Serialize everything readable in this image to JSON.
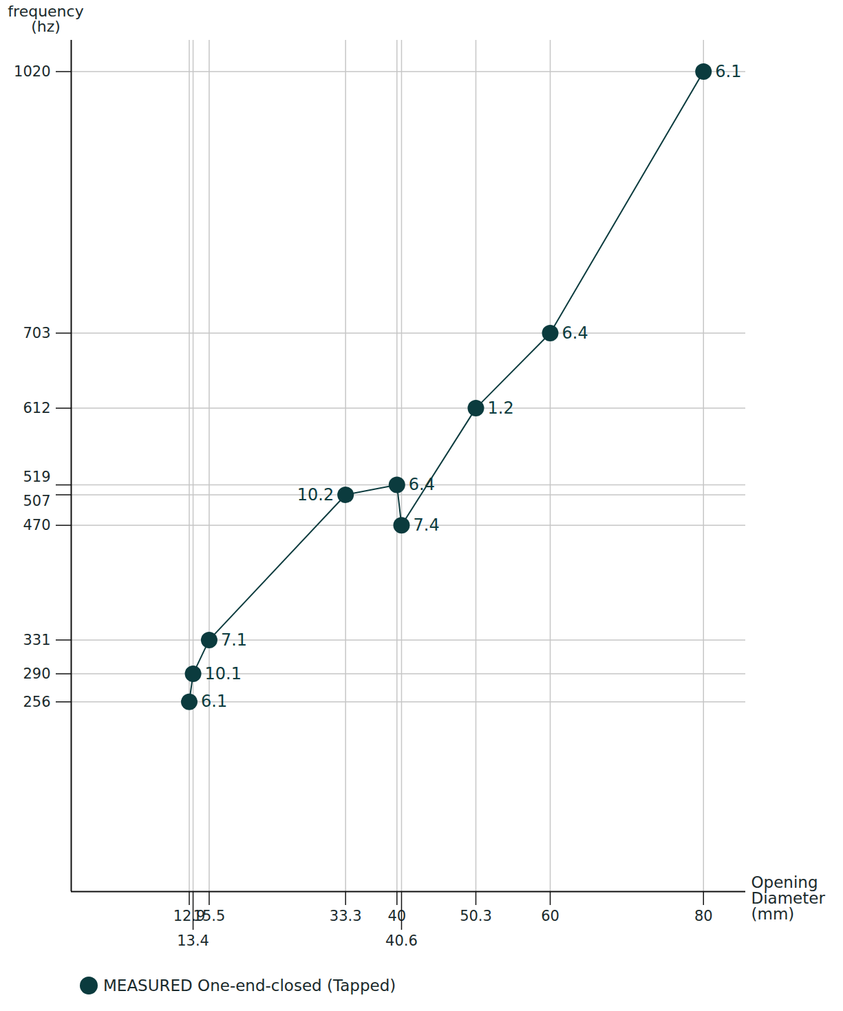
{
  "chart_data": {
    "type": "line",
    "x_label": "Opening Diameter (mm)",
    "y_label": "frequency (hz)",
    "x": [
      80,
      60,
      50.3,
      40.6,
      40,
      33.3,
      15.5,
      13.4,
      12.9
    ],
    "series": [
      {
        "name": "MEASURED One-end-closed (Tapped)",
        "color": "#0b3b3e",
        "marker": "circle",
        "values": [
          1020,
          703,
          612,
          470,
          519,
          507,
          331,
          290,
          256
        ],
        "point_labels": [
          "6.1",
          "6.4",
          "1.2",
          "7.4",
          "6.4",
          "10.2",
          "7.1",
          "10.1",
          "6.1"
        ]
      }
    ],
    "xlim": [
      -2.5,
      85.5
    ],
    "ylim": [
      26,
      1058
    ],
    "xticks": [
      12.9,
      13.4,
      15.5,
      33.3,
      40,
      40.6,
      50.3,
      60,
      80
    ],
    "yticks": [
      256,
      290,
      331,
      470,
      507,
      519,
      612,
      703,
      1020
    ],
    "grid": true,
    "legend": "bottom-left"
  }
}
